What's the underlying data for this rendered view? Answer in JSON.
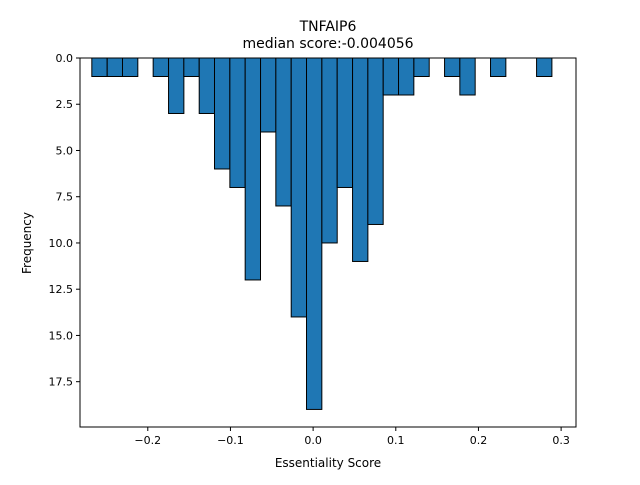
{
  "chart_data": {
    "type": "bar",
    "subtype": "histogram",
    "title": "TNFAIP6",
    "subtitle": "median score:-0.004056",
    "xlabel": "Essentiality Score",
    "ylabel": "Frequency",
    "y_axis_inverted": true,
    "xlim": [
      -0.282,
      0.318
    ],
    "ylim": [
      0,
      19.95
    ],
    "xticks": [
      -0.2,
      -0.1,
      0.0,
      0.1,
      0.2,
      0.3
    ],
    "xtick_labels": [
      "−0.2",
      "−0.1",
      "0.0",
      "0.1",
      "0.2",
      "0.3"
    ],
    "yticks": [
      0,
      2.5,
      5,
      7.5,
      10,
      12.5,
      15,
      17.5
    ],
    "ytick_labels": [
      "0.0",
      "2.5",
      "5.0",
      "7.5",
      "10.0",
      "12.5",
      "15.0",
      "17.5"
    ],
    "bar_color": "#1f77b4",
    "edge_color": "#000000",
    "bin_width": 0.01855,
    "bin_starts": [
      -0.2677,
      -0.2491,
      -0.2306,
      -0.1935,
      -0.1749,
      -0.1564,
      -0.1378,
      -0.1193,
      -0.1007,
      -0.0822,
      -0.0636,
      -0.0451,
      -0.0265,
      -0.008,
      0.0106,
      0.0291,
      0.0477,
      0.0662,
      0.0848,
      0.1033,
      0.1219,
      0.159,
      0.1775,
      0.2146,
      0.2703
    ],
    "values": [
      1,
      1,
      1,
      1,
      3,
      1,
      3,
      6,
      7,
      12,
      4,
      8,
      14,
      19,
      10,
      7,
      11,
      9,
      2,
      2,
      1,
      1,
      2,
      1,
      1
    ]
  }
}
